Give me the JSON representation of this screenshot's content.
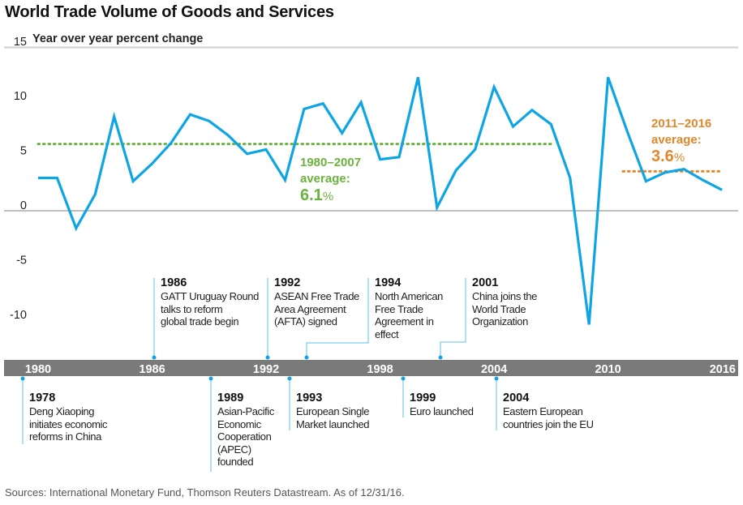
{
  "chart_data": {
    "type": "line",
    "title": "World Trade Volume of Goods and Services",
    "ylabel": "Year over year percent change",
    "xlabel": "",
    "ylim": [
      -15,
      15
    ],
    "xlim": [
      1980,
      2016
    ],
    "yticks": [
      15,
      10,
      5,
      0,
      -5,
      -10
    ],
    "xticks": [
      1980,
      1986,
      1992,
      1998,
      2004,
      2010,
      2016
    ],
    "grid": "zero line and top line only",
    "colors": {
      "series": "#0ea5e4",
      "avg_1980_2007": "#6bb33e",
      "avg_2011_2016": "#e2872a",
      "timeline_bar": "#7a7a7a",
      "connector": "#5bc0eb"
    },
    "x": [
      1980,
      1981,
      1982,
      1983,
      1984,
      1985,
      1986,
      1987,
      1988,
      1989,
      1990,
      1991,
      1992,
      1993,
      1994,
      1995,
      1996,
      1997,
      1998,
      1999,
      2000,
      2001,
      2002,
      2003,
      2004,
      2005,
      2006,
      2007,
      2008,
      2009,
      2010,
      2011,
      2012,
      2013,
      2014,
      2015,
      2016
    ],
    "series": [
      {
        "name": "World trade volume (% change YoY)",
        "values": [
          3.0,
          3.0,
          -1.6,
          1.5,
          8.6,
          2.7,
          4.3,
          6.2,
          8.8,
          8.2,
          6.9,
          5.2,
          5.6,
          2.8,
          9.3,
          9.8,
          7.1,
          9.9,
          4.7,
          4.9,
          12.2,
          0.3,
          3.7,
          5.6,
          11.3,
          7.7,
          9.2,
          7.9,
          3.0,
          -10.4,
          12.2,
          7.3,
          2.7,
          3.5,
          3.8,
          2.8,
          1.9
        ]
      }
    ],
    "averages": [
      {
        "label_range": "1980–2007",
        "label_word": "average:",
        "value": 6.1,
        "value_label": "6.1",
        "pct": "%",
        "from": 1980,
        "to": 2007
      },
      {
        "label_range": "2011–2016",
        "label_word": "average:",
        "value": 3.6,
        "value_label": "3.6",
        "pct": "%",
        "from": 2011,
        "to": 2016
      }
    ],
    "events_above": [
      {
        "year": "1986",
        "text": [
          "GATT Uruguay Round",
          "talks to reform",
          "global trade begin"
        ],
        "at": 1986.0
      },
      {
        "year": "1992",
        "text": [
          "ASEAN Free Trade",
          "Area Agreement",
          "(AFTA) signed"
        ],
        "at": 1992.0
      },
      {
        "year": "1994",
        "text": [
          "North American",
          "Free Trade",
          "Agreement in",
          "effect"
        ],
        "at": 1994.0
      },
      {
        "year": "2001",
        "text": [
          "China joins the",
          "World Trade",
          "Organization"
        ],
        "at": 2001.0
      }
    ],
    "events_below": [
      {
        "year": "1978",
        "text": [
          "Deng Xiaoping",
          "initiates economic",
          "reforms in China"
        ],
        "at": 1979.0
      },
      {
        "year": "1989",
        "text": [
          "Asian-Pacific",
          "Economic",
          "Cooperation",
          "(APEC)",
          "founded"
        ],
        "at": 1989.0
      },
      {
        "year": "1993",
        "text": [
          "European Single",
          "Market launched"
        ],
        "at": 1993.0
      },
      {
        "year": "1999",
        "text": [
          "Euro launched"
        ],
        "at": 1999.0
      },
      {
        "year": "2004",
        "text": [
          "Eastern European",
          "countries join the EU"
        ],
        "at": 2004.0
      }
    ]
  },
  "footer": {
    "source": "Sources: International Monetary Fund, Thomson Reuters Datastream. As of 12/31/16."
  }
}
